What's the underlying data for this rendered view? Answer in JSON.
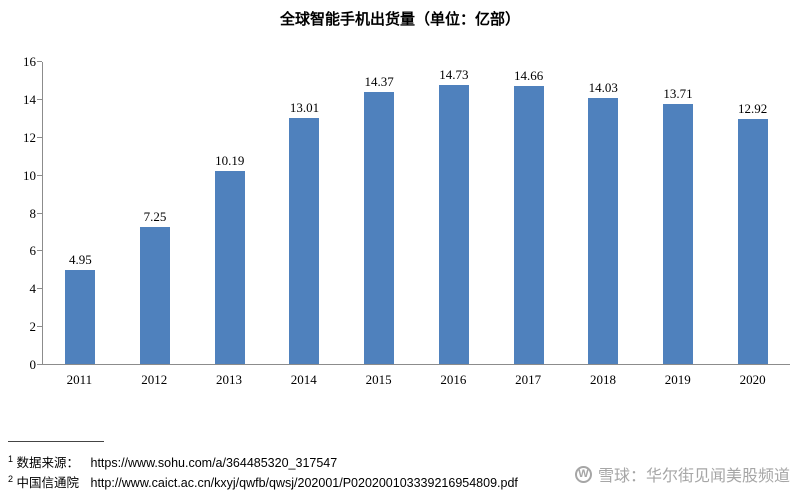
{
  "chart": {
    "title": "全球智能手机出货量（单位：亿部）"
  },
  "chart_data": {
    "type": "bar",
    "categories": [
      "2011",
      "2012",
      "2013",
      "2014",
      "2015",
      "2016",
      "2017",
      "2018",
      "2019",
      "2020"
    ],
    "values": [
      4.95,
      7.25,
      10.19,
      13.01,
      14.37,
      14.73,
      14.66,
      14.03,
      13.71,
      12.92
    ],
    "title": "全球智能手机出货量（单位：亿部）",
    "xlabel": "",
    "ylabel": "",
    "ylim": [
      0,
      16
    ],
    "ytick_step": 2,
    "bar_color": "#4F81BD",
    "grid": false,
    "legend": "none",
    "data_labels": true
  },
  "footnotes": [
    {
      "marker": "1",
      "label": "数据来源：",
      "url": "https://www.sohu.com/a/364485320_317547"
    },
    {
      "marker": "2",
      "label": "中国信通院",
      "url": "http://www.caict.ac.cn/kxyj/qwfb/qwsj/202001/P020200103339216954809.pdf"
    }
  ],
  "watermark": {
    "icon": "W",
    "text": "雪球：华尔街见闻美股频道"
  }
}
